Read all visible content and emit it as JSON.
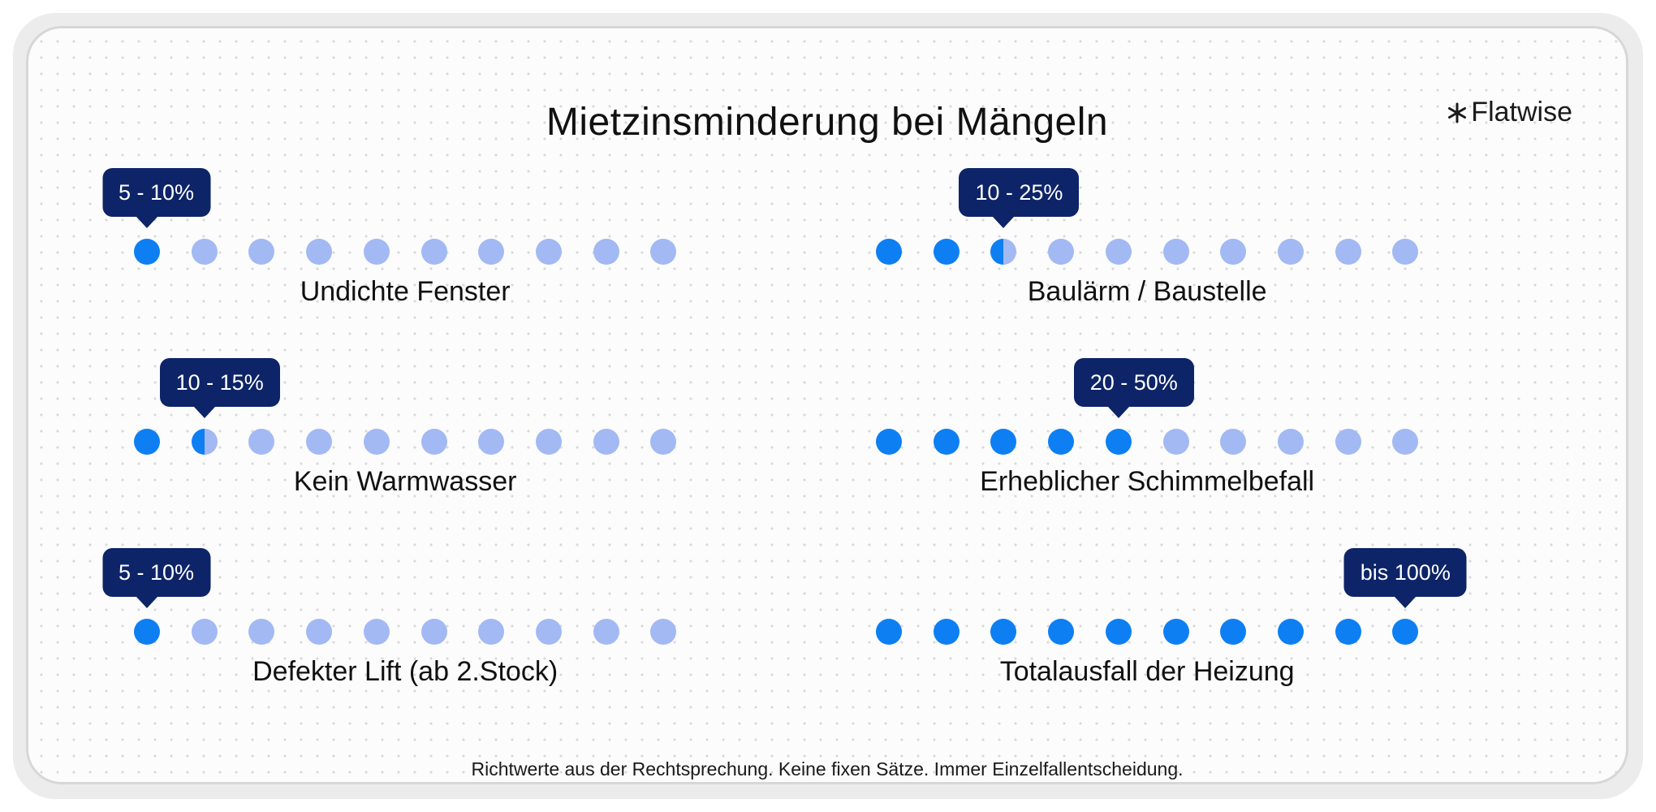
{
  "title": "Mietzinsminderung bei Mängeln",
  "brand": {
    "name": "Flatwise",
    "icon": "asterisk-logo-icon"
  },
  "footnote": "Richtwerte aus der Rechtsprechung. Keine fixen Sätze. Immer Einzelfallentscheidung.",
  "colors": {
    "filled": "#0d7ff3",
    "empty": "#a2b9f3",
    "badge": "#0d2468"
  },
  "chart_data": {
    "type": "dot-scale",
    "dots_per_row": 10,
    "step_percent": 10,
    "items": [
      {
        "label": "Undichte Fenster",
        "range": "5 - 10%",
        "min": 5,
        "max": 10
      },
      {
        "label": "Baulärm / Baustelle",
        "range": "10 - 25%",
        "min": 10,
        "max": 25
      },
      {
        "label": "Kein Warmwasser",
        "range": "10 - 15%",
        "min": 10,
        "max": 15
      },
      {
        "label": "Erheblicher Schimmelbefall",
        "range": "20 - 50%",
        "min": 20,
        "max": 50
      },
      {
        "label": "Defekter Lift (ab 2.Stock)",
        "range": "5 - 10%",
        "min": 5,
        "max": 10
      },
      {
        "label": "Totalausfall der Heizung",
        "range": "bis 100%",
        "min": null,
        "max": 100
      }
    ]
  }
}
